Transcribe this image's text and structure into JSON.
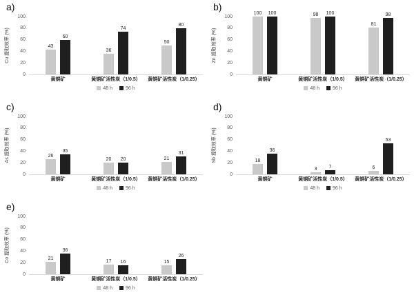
{
  "axis": {
    "ticks": [
      0,
      20,
      40,
      60,
      80,
      100
    ]
  },
  "legend": {
    "items": [
      {
        "label": "48 h",
        "color": "#c9c9c9"
      },
      {
        "label": "96 h",
        "color": "#1f1f1f"
      }
    ]
  },
  "chart_data": [
    {
      "type": "bar",
      "panel_label": "a)",
      "ylabel": "Cu 提取效率 (%)",
      "ylim": [
        0,
        100
      ],
      "grid": false,
      "legend_position": "bottom",
      "categories": [
        "黄铜矿",
        "黄铜矿活性炭（1/0.5）",
        "黄铜矿活性炭（1/0.25）"
      ],
      "series": [
        {
          "name": "48 h",
          "color": "#c9c9c9",
          "values": [
            43,
            36,
            50
          ]
        },
        {
          "name": "96 h",
          "color": "#1f1f1f",
          "values": [
            60,
            74,
            80
          ]
        }
      ]
    },
    {
      "type": "bar",
      "panel_label": "b)",
      "ylabel": "Zn 提取效率 (%)",
      "ylim": [
        0,
        100
      ],
      "grid": false,
      "legend_position": "bottom",
      "categories": [
        "黄铜矿",
        "黄铜矿活性炭（1/0.5）",
        "黄铜矿活性炭（1/0.25）"
      ],
      "series": [
        {
          "name": "48 h",
          "color": "#c9c9c9",
          "values": [
            100,
            98,
            81
          ]
        },
        {
          "name": "96 h",
          "color": "#1f1f1f",
          "values": [
            100,
            100,
            98
          ]
        }
      ]
    },
    {
      "type": "bar",
      "panel_label": "c)",
      "ylabel": "As 提取效率 (%)",
      "ylim": [
        0,
        100
      ],
      "grid": false,
      "legend_position": "bottom",
      "categories": [
        "黄铜矿",
        "黄铜矿活性炭（1/0.5）",
        "黄铜矿活性炭（1/0.25）"
      ],
      "series": [
        {
          "name": "48 h",
          "color": "#c9c9c9",
          "values": [
            26,
            20,
            21
          ]
        },
        {
          "name": "96 h",
          "color": "#1f1f1f",
          "values": [
            35,
            20,
            31
          ]
        }
      ]
    },
    {
      "type": "bar",
      "panel_label": "d)",
      "ylabel": "Sb 提取效率 (%)",
      "ylim": [
        0,
        100
      ],
      "grid": false,
      "legend_position": "bottom",
      "categories": [
        "黄铜矿",
        "黄铜矿活性炭（1/0.5）",
        "黄铜矿活性炭（1/0.25）"
      ],
      "series": [
        {
          "name": "48 h",
          "color": "#c9c9c9",
          "values": [
            18,
            3,
            6
          ]
        },
        {
          "name": "96 h",
          "color": "#1f1f1f",
          "values": [
            36,
            7,
            53
          ]
        }
      ]
    },
    {
      "type": "bar",
      "panel_label": "e)",
      "ylabel": "Co 提取效率 (%)",
      "ylim": [
        0,
        100
      ],
      "grid": false,
      "legend_position": "bottom",
      "categories": [
        "黄铜矿",
        "黄铜矿活性炭（1/0.5）",
        "黄铜矿活性炭（1/0.25）"
      ],
      "series": [
        {
          "name": "48 h",
          "color": "#c9c9c9",
          "values": [
            21,
            17,
            15
          ]
        },
        {
          "name": "96 h",
          "color": "#1f1f1f",
          "values": [
            36,
            16,
            26
          ]
        }
      ]
    }
  ]
}
